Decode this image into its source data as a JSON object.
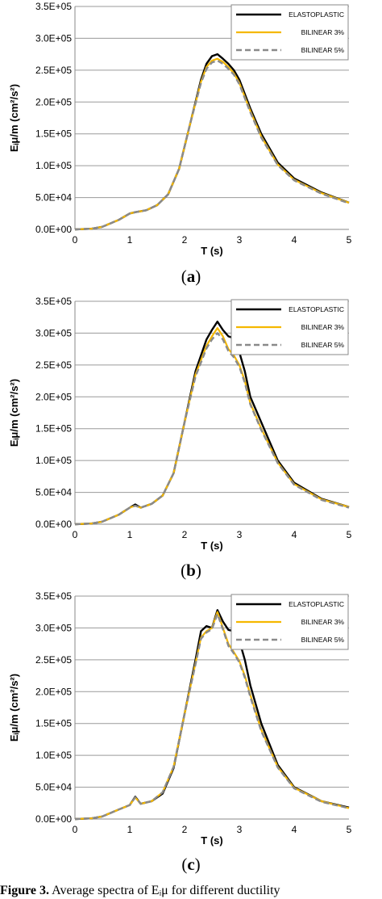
{
  "colors": {
    "elastoplastic": "#000000",
    "bilinear3": "#f5b800",
    "bilinear5": "#8a8a8a",
    "grid": "#9a9a9a"
  },
  "labels": [
    "a",
    "b",
    "c"
  ],
  "caption": {
    "prefix": "Figure 3.",
    "text": "Average spectra of Eᵢμ for different ductility"
  },
  "chart_data": [
    {
      "type": "line",
      "xlabel": "T (s)",
      "ylabel": "Eᵢμ/m (cm²/s²)",
      "xlim": [
        0,
        5
      ],
      "ylim": [
        0,
        350000
      ],
      "xticks": [
        "0",
        "1",
        "2",
        "3",
        "4",
        "5"
      ],
      "yticks": [
        "0.0E+00",
        "5.0E+04",
        "1.0E+05",
        "1.5E+05",
        "2.0E+05",
        "2.5E+05",
        "3.0E+05",
        "3.5E+05"
      ],
      "grid": "horizontal",
      "legend_position": "top-right",
      "series": [
        {
          "name": "ELASTOPLASTIC",
          "x": [
            0,
            0.3,
            0.5,
            0.8,
            1.0,
            1.1,
            1.3,
            1.5,
            1.7,
            1.9,
            2.1,
            2.3,
            2.4,
            2.5,
            2.6,
            2.7,
            2.8,
            2.9,
            3.0,
            3.2,
            3.4,
            3.7,
            4.0,
            4.5,
            5.0
          ],
          "values": [
            0,
            1000,
            4000,
            15000,
            25000,
            27000,
            30000,
            38000,
            55000,
            95000,
            165000,
            235000,
            260000,
            272000,
            275000,
            268000,
            260000,
            250000,
            235000,
            190000,
            150000,
            105000,
            80000,
            58000,
            42000
          ]
        },
        {
          "name": "BILINEAR 3%",
          "x": [
            0,
            0.3,
            0.5,
            0.8,
            1.0,
            1.1,
            1.3,
            1.5,
            1.7,
            1.9,
            2.1,
            2.3,
            2.4,
            2.5,
            2.6,
            2.7,
            2.8,
            2.9,
            3.0,
            3.2,
            3.4,
            3.7,
            4.0,
            4.5,
            5.0
          ],
          "values": [
            0,
            1000,
            4000,
            15000,
            25000,
            27000,
            30000,
            38000,
            55000,
            95000,
            165000,
            232000,
            255000,
            265000,
            268000,
            263000,
            255000,
            245000,
            230000,
            186000,
            146000,
            102000,
            78000,
            57000,
            42000
          ]
        },
        {
          "name": "BILINEAR 5%",
          "x": [
            0,
            0.3,
            0.5,
            0.8,
            1.0,
            1.1,
            1.3,
            1.5,
            1.7,
            1.9,
            2.1,
            2.3,
            2.4,
            2.5,
            2.6,
            2.7,
            2.8,
            2.9,
            3.0,
            3.2,
            3.4,
            3.7,
            4.0,
            4.5,
            5.0
          ],
          "values": [
            0,
            1000,
            4000,
            15000,
            25000,
            27000,
            30000,
            38000,
            55000,
            95000,
            165000,
            230000,
            252000,
            262000,
            265000,
            260000,
            252000,
            243000,
            228000,
            184000,
            144000,
            101000,
            77000,
            56000,
            41000
          ]
        }
      ]
    },
    {
      "type": "line",
      "xlabel": "T (s)",
      "ylabel": "Eᵢμ/m (cm²/s²)",
      "xlim": [
        0,
        5
      ],
      "ylim": [
        0,
        350000
      ],
      "xticks": [
        "0",
        "1",
        "2",
        "3",
        "4",
        "5"
      ],
      "yticks": [
        "0.0E+00",
        "5.0E+04",
        "1.0E+05",
        "1.5E+05",
        "2.0E+05",
        "2.5E+05",
        "3.0E+05",
        "3.5E+05"
      ],
      "grid": "horizontal",
      "legend_position": "top-right",
      "series": [
        {
          "name": "ELASTOPLASTIC",
          "x": [
            0,
            0.3,
            0.5,
            0.8,
            1.0,
            1.1,
            1.2,
            1.4,
            1.6,
            1.8,
            2.0,
            2.2,
            2.4,
            2.5,
            2.6,
            2.7,
            2.8,
            2.9,
            3.0,
            3.1,
            3.2,
            3.4,
            3.7,
            4.0,
            4.5,
            5.0
          ],
          "values": [
            0,
            1000,
            4000,
            15000,
            26000,
            31000,
            26000,
            32000,
            45000,
            80000,
            160000,
            240000,
            290000,
            305000,
            318000,
            305000,
            295000,
            292000,
            270000,
            240000,
            200000,
            160000,
            100000,
            65000,
            40000,
            27000
          ]
        },
        {
          "name": "BILINEAR 3%",
          "x": [
            0,
            0.3,
            0.5,
            0.8,
            1.0,
            1.1,
            1.2,
            1.4,
            1.6,
            1.8,
            2.0,
            2.2,
            2.4,
            2.5,
            2.6,
            2.7,
            2.8,
            2.9,
            3.0,
            3.1,
            3.2,
            3.4,
            3.7,
            4.0,
            4.5,
            5.0
          ],
          "values": [
            0,
            1000,
            4000,
            15000,
            26000,
            29000,
            26000,
            32000,
            45000,
            80000,
            160000,
            235000,
            280000,
            295000,
            308000,
            295000,
            275000,
            265000,
            250000,
            225000,
            190000,
            150000,
            97000,
            63000,
            39000,
            27000
          ]
        },
        {
          "name": "BILINEAR 5%",
          "x": [
            0,
            0.3,
            0.5,
            0.8,
            1.0,
            1.1,
            1.2,
            1.4,
            1.6,
            1.8,
            2.0,
            2.2,
            2.4,
            2.5,
            2.6,
            2.7,
            2.8,
            2.9,
            3.0,
            3.1,
            3.2,
            3.4,
            3.7,
            4.0,
            4.5,
            5.0
          ],
          "values": [
            0,
            1000,
            4000,
            15000,
            26000,
            29000,
            26000,
            32000,
            45000,
            80000,
            160000,
            232000,
            276000,
            290000,
            300000,
            290000,
            272000,
            262000,
            247000,
            222000,
            188000,
            148000,
            96000,
            62000,
            38000,
            26000
          ]
        }
      ]
    },
    {
      "type": "line",
      "xlabel": "T (s)",
      "ylabel": "Eᵢμ/m (cm²/s²)",
      "xlim": [
        0,
        5
      ],
      "ylim": [
        0,
        350000
      ],
      "xticks": [
        "0",
        "1",
        "2",
        "3",
        "4",
        "5"
      ],
      "yticks": [
        "0.0E+00",
        "5.0E+04",
        "1.0E+05",
        "1.5E+05",
        "2.0E+05",
        "2.5E+05",
        "3.0E+05",
        "3.5E+05"
      ],
      "grid": "horizontal",
      "legend_position": "top-right",
      "series": [
        {
          "name": "ELASTOPLASTIC",
          "x": [
            0,
            0.3,
            0.5,
            0.8,
            1.0,
            1.1,
            1.2,
            1.4,
            1.6,
            1.8,
            2.0,
            2.2,
            2.3,
            2.4,
            2.5,
            2.6,
            2.7,
            2.8,
            2.9,
            3.0,
            3.1,
            3.2,
            3.4,
            3.7,
            4.0,
            4.5,
            5.0
          ],
          "values": [
            0,
            1000,
            4000,
            15000,
            22000,
            35000,
            24000,
            28000,
            40000,
            80000,
            165000,
            250000,
            295000,
            303000,
            300000,
            328000,
            310000,
            297000,
            295000,
            280000,
            250000,
            210000,
            150000,
            85000,
            50000,
            28000,
            18000
          ]
        },
        {
          "name": "BILINEAR 3%",
          "x": [
            0,
            0.3,
            0.5,
            0.8,
            1.0,
            1.1,
            1.2,
            1.4,
            1.6,
            1.8,
            2.0,
            2.2,
            2.3,
            2.4,
            2.5,
            2.6,
            2.7,
            2.8,
            2.9,
            3.0,
            3.1,
            3.2,
            3.4,
            3.7,
            4.0,
            4.5,
            5.0
          ],
          "values": [
            0,
            1000,
            4000,
            15000,
            22000,
            34000,
            24000,
            28000,
            42000,
            82000,
            165000,
            245000,
            285000,
            295000,
            300000,
            325000,
            300000,
            275000,
            262000,
            248000,
            225000,
            195000,
            140000,
            82000,
            49000,
            28000,
            17000
          ]
        },
        {
          "name": "BILINEAR 5%",
          "x": [
            0,
            0.3,
            0.5,
            0.8,
            1.0,
            1.1,
            1.2,
            1.4,
            1.6,
            1.8,
            2.0,
            2.2,
            2.3,
            2.4,
            2.5,
            2.6,
            2.7,
            2.8,
            2.9,
            3.0,
            3.1,
            3.2,
            3.4,
            3.7,
            4.0,
            4.5,
            5.0
          ],
          "values": [
            0,
            1000,
            4000,
            15000,
            22000,
            34000,
            24000,
            28000,
            42000,
            82000,
            165000,
            243000,
            283000,
            293000,
            298000,
            322000,
            298000,
            272000,
            260000,
            246000,
            222000,
            192000,
            138000,
            81000,
            48000,
            27000,
            17000
          ]
        }
      ]
    }
  ]
}
